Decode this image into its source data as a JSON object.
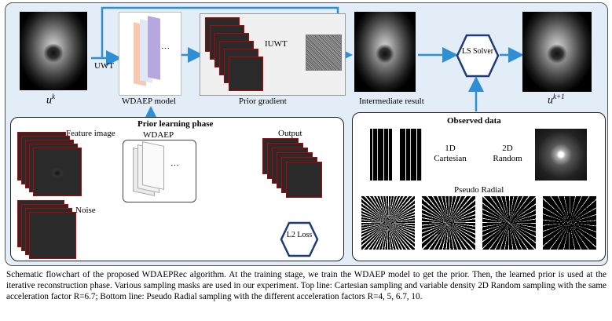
{
  "labels": {
    "u_k_base": "u",
    "u_k_sup": "k",
    "uwt": "UWT",
    "wdaep_model": "WDAEP model",
    "iuwt": "IUWT",
    "prior_gradient": "Prior gradient",
    "intermediate_result": "Intermediate result",
    "ls_solver": "LS Solver",
    "u_k1_base": "u",
    "u_k1_sup": "k+1",
    "dots": "···",
    "dots2": "···"
  },
  "prior_phase": {
    "title": "Prior learning phase",
    "feature_image": "Feature image",
    "wdaep": "WDAEP",
    "output": "Output",
    "noise": "Noise",
    "l2_loss": "L2 Loss"
  },
  "observed": {
    "title": "Observed data",
    "cartesian_1d": "1D Cartesian",
    "random_2d": "2D Random",
    "pseudo_radial": "Pseudo Radial"
  },
  "caption": {
    "text": "Schematic flowchart of the proposed WDAEPRec algorithm. At the training stage, we train the WDAEP model to get the prior. Then, the learned prior is used at the iterative reconstruction phase. Various sampling masks are used in our experiment. Top line: Cartesian sampling and variable density 2D Random sampling with the same acceleration factor R=6.7; Bottom line: Pseudo Radial sampling with the different acceleration factors R=4, 5, 6.7, 10."
  },
  "colors": {
    "arrow": "#2f8fd6",
    "panel_bg": "#e3edf7",
    "hex_border": "#1f3a7a",
    "stack_border": "#c00000"
  }
}
